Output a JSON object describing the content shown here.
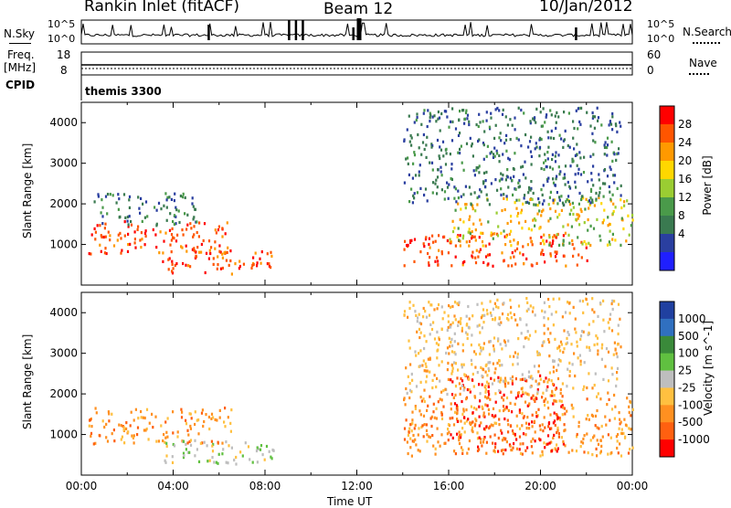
{
  "header": {
    "title": "Rankin Inlet (fitACF)",
    "beam": "Beam 12",
    "date": "10/Jan/2012"
  },
  "strips": {
    "nsky_label": "N.Sky",
    "nsearch_label": "N.Search",
    "nsky_ticks": [
      "10^5",
      "10^0"
    ],
    "nsearch_ticks": [
      "10^5",
      "10^0"
    ],
    "freq_label": "Freq.",
    "freq_unit": "[MHz]",
    "freq_ticks": [
      "18",
      "8"
    ],
    "nave_label": "Nave",
    "nave_ticks": [
      "60",
      "0"
    ],
    "cpid_label": "CPID",
    "cpid_value": "themis 3300"
  },
  "colors": {
    "power_scale": [
      "#1f1fff",
      "#2a3fa0",
      "#3a7a50",
      "#4a9a4a",
      "#9acd32",
      "#ffd700",
      "#ff9900",
      "#ff5500",
      "#ff0000"
    ],
    "velocity_scale": [
      "#2040a0",
      "#3070c0",
      "#3a8a3a",
      "#60c040",
      "#bebebe",
      "#ffc040",
      "#ff9020",
      "#ff6010",
      "#ff0000"
    ]
  },
  "chart_data": [
    {
      "type": "heatmap",
      "panel": "power",
      "xlabel": "",
      "ylabel": "Slant Range [km]",
      "xlim": [
        "00:00",
        "00:00"
      ],
      "ylim": [
        0,
        4500
      ],
      "yticks": [
        1000,
        2000,
        3000,
        4000
      ],
      "colorbar": {
        "label": "Power [dB]",
        "ticks": [
          "28",
          "24",
          "20",
          "16",
          "12",
          "8",
          "4"
        ]
      },
      "regions": [
        {
          "t0": 0.3,
          "t1": 6.5,
          "r0": 800,
          "r1": 1600,
          "level": "high"
        },
        {
          "t0": 3.5,
          "t1": 8.5,
          "r0": 300,
          "r1": 900,
          "level": "high"
        },
        {
          "t0": 14.0,
          "t1": 22.0,
          "r0": 500,
          "r1": 1300,
          "level": "high"
        },
        {
          "t0": 16.0,
          "t1": 24.0,
          "r0": 1000,
          "r1": 2200,
          "level": "medium"
        },
        {
          "t0": 0.5,
          "t1": 5.0,
          "r0": 1500,
          "r1": 2300,
          "level": "low"
        },
        {
          "t0": 14.0,
          "t1": 23.5,
          "r0": 2000,
          "r1": 4400,
          "level": "low"
        }
      ]
    },
    {
      "type": "heatmap",
      "panel": "velocity",
      "xlabel": "Time UT",
      "ylabel": "Slant Range [km]",
      "xlim": [
        "00:00",
        "00:00"
      ],
      "ylim": [
        0,
        4500
      ],
      "yticks": [
        1000,
        2000,
        3000,
        4000
      ],
      "xticks": [
        "00:00",
        "04:00",
        "08:00",
        "12:00",
        "16:00",
        "20:00",
        "00:00"
      ],
      "colorbar": {
        "label": "Velocity [m s^-1]",
        "ticks": [
          "1000",
          "500",
          "100",
          "25",
          "-25",
          "-100",
          "-500",
          "-1000"
        ]
      },
      "regions": [
        {
          "t0": 0.3,
          "t1": 6.5,
          "r0": 800,
          "r1": 1700,
          "level": "negative-medium"
        },
        {
          "t0": 3.5,
          "t1": 8.5,
          "r0": 300,
          "r1": 900,
          "level": "near-zero"
        },
        {
          "t0": 14.0,
          "t1": 24.0,
          "r0": 500,
          "r1": 2000,
          "level": "negative-medium"
        },
        {
          "t0": 16.0,
          "t1": 21.0,
          "r0": 600,
          "r1": 2500,
          "level": "negative-high"
        },
        {
          "t0": 14.0,
          "t1": 23.5,
          "r0": 2000,
          "r1": 4400,
          "level": "negative-low"
        }
      ]
    }
  ]
}
